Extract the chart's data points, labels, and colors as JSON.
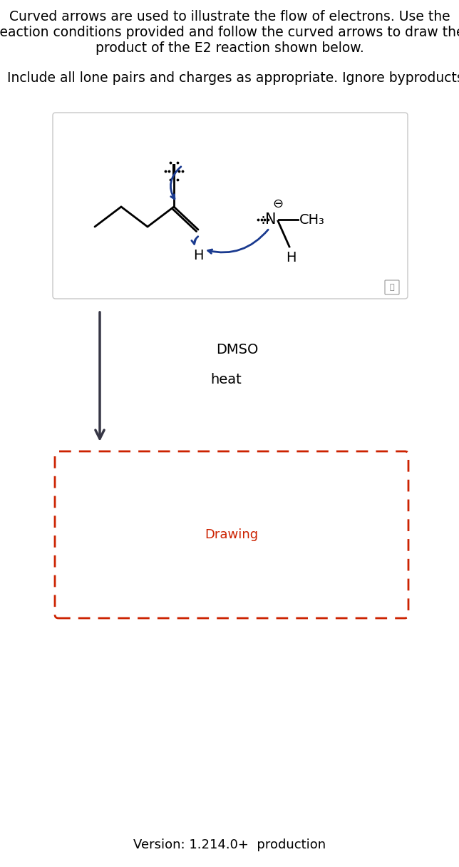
{
  "title_line1": "Curved arrows are used to illustrate the flow of electrons. Use the",
  "title_line2": "reaction conditions provided and follow the curved arrows to draw the",
  "title_line3": "product of the E2 reaction shown below.",
  "subtitle": "Include all lone pairs and charges as appropriate. Ignore byproducts.",
  "condition1": "DMSO",
  "condition2": "heat",
  "drawing_label": "Drawing",
  "version_text": "Version: 1.214.0+  production",
  "bg_color": "#ffffff",
  "text_color": "#000000",
  "dark_arrow_color": "#363645",
  "curved_arrow_color": "#1a3a8f",
  "dashed_box_color": "#cc2200",
  "box_border_color": "#cccccc",
  "font_size_title": 13.5,
  "font_size_subtitle": 13.5,
  "font_size_conditions": 14,
  "font_size_version": 13,
  "fig_width": 6.44,
  "fig_height": 12.16,
  "dpi": 100
}
